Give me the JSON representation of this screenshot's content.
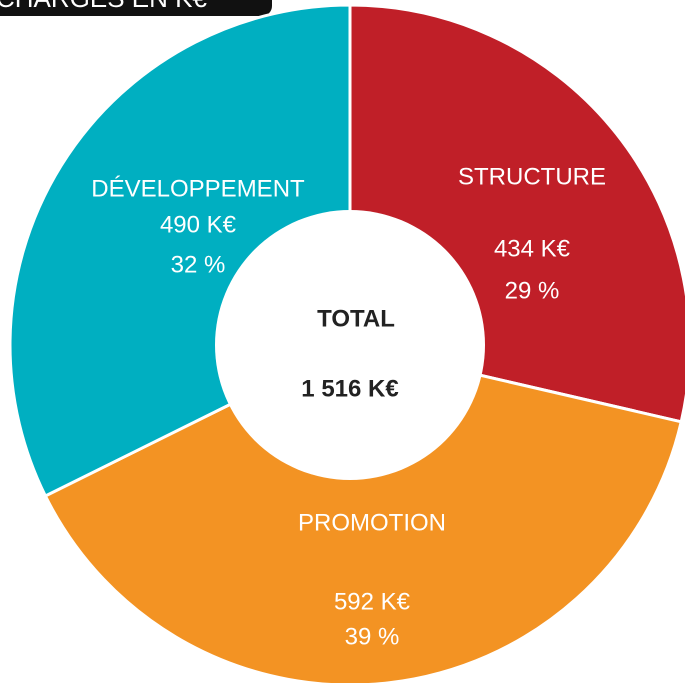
{
  "chart_data": {
    "type": "donut",
    "title": "CHARGES EN K€",
    "categories": [
      "STRUCTURE",
      "PROMOTION",
      "DÉVELOPPEMENT"
    ],
    "values": [
      434,
      592,
      490
    ],
    "value_labels": [
      "434 K€",
      "592 K€",
      "490 K€"
    ],
    "shares": [
      29,
      39,
      32
    ],
    "share_labels": [
      "29 %",
      "39 %",
      "32 %"
    ],
    "colors": [
      "#c01f28",
      "#f39323",
      "#00afc1"
    ],
    "center_title": "TOTAL",
    "center_value": "1 516 K€"
  }
}
